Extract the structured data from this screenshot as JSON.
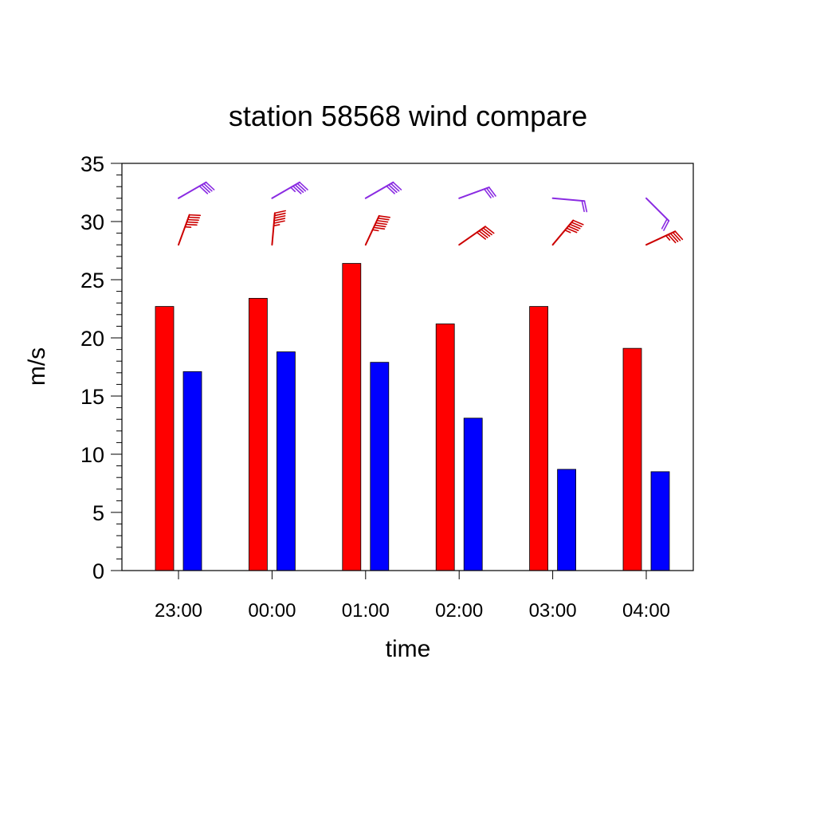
{
  "chart_data": {
    "type": "bar",
    "title": "station 58568 wind compare",
    "xlabel": "time",
    "ylabel": "m/s",
    "ylim": [
      0,
      35
    ],
    "yticks": [
      0,
      5,
      10,
      15,
      20,
      25,
      30,
      35
    ],
    "categories": [
      "23:00",
      "00:00",
      "01:00",
      "02:00",
      "03:00",
      "04:00"
    ],
    "series": [
      {
        "color": "#ff0000",
        "values": [
          22.7,
          23.4,
          26.4,
          21.2,
          22.7,
          19.1
        ]
      },
      {
        "color": "#0000ff",
        "values": [
          17.1,
          18.8,
          17.9,
          13.1,
          8.7,
          8.5
        ]
      }
    ],
    "wind_barbs": [
      {
        "color": "#cc0000",
        "base_y": 28,
        "directions_deg": [
          200,
          185,
          205,
          235,
          220,
          245
        ],
        "speeds": [
          22.7,
          23.4,
          26.4,
          21.2,
          22.7,
          19.1
        ]
      },
      {
        "color": "#8a2be2",
        "base_y": 32,
        "directions_deg": [
          240,
          240,
          240,
          250,
          275,
          315
        ],
        "speeds": [
          17.1,
          18.8,
          17.9,
          13.1,
          8.7,
          8.5
        ]
      }
    ],
    "grid": false,
    "legend": "none"
  }
}
